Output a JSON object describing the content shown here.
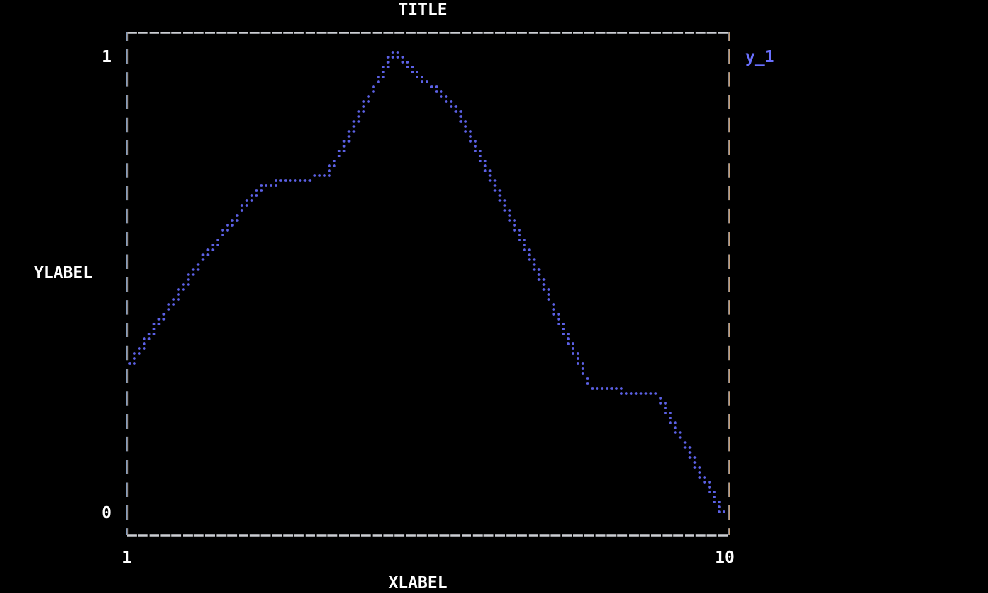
{
  "page": {
    "background": "#000000",
    "text_color": "#ffffff",
    "border_color": "#cbcdd3",
    "accent_color": "#6066e4"
  },
  "chart": {
    "title": "TITLE",
    "xlabel": "XLABEL",
    "ylabel": "YLABEL",
    "y_tick_top": "1",
    "y_tick_bottom": "0",
    "x_tick_left": "1",
    "x_tick_right": "10",
    "legend_label": "y_1"
  },
  "chart_data": {
    "type": "line",
    "render_style": "braille-dotted-terminal-plot",
    "title": "TITLE",
    "xlabel": "XLABEL",
    "ylabel": "YLABEL",
    "x": [
      1,
      2,
      3,
      4,
      5,
      6,
      7,
      8,
      9,
      10
    ],
    "series": [
      {
        "name": "y_1",
        "color": "#5c61e6",
        "values": [
          0.32,
          0.53,
          0.71,
          0.73,
          1.0,
          0.87,
          0.58,
          0.27,
          0.26,
          0.0
        ]
      }
    ],
    "xlim": [
      1,
      10
    ],
    "ylim": [
      0,
      1
    ],
    "x_ticks": [
      "1",
      "10"
    ],
    "y_ticks": [
      "0",
      "1"
    ],
    "legend_position": "top-right-outside",
    "grid": false,
    "border": "dashed-box"
  }
}
